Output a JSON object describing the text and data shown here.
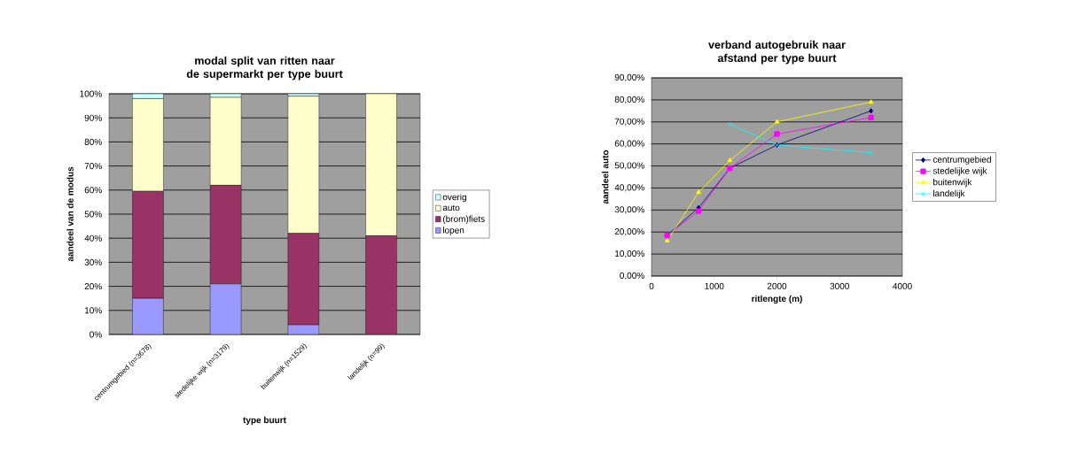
{
  "chart_data": [
    {
      "type": "bar",
      "stacked": true,
      "title": "modal split van ritten naar de supermarkt per type buurt",
      "xlabel": "type buurt",
      "ylabel": "aandeel van de modus",
      "categories": [
        "centrumgebied (n=3678)",
        "stedelijke wijk (n=3179)",
        "buitenwijk (n=1529)",
        "landelijk (n=99)"
      ],
      "series": [
        {
          "name": "lopen",
          "color": "#9999ff",
          "values": [
            15,
            21,
            4,
            0
          ]
        },
        {
          "name": "(brom)fiets",
          "color": "#993366",
          "values": [
            44.5,
            41,
            38,
            41
          ]
        },
        {
          "name": "auto",
          "color": "#ffffcc",
          "values": [
            38.5,
            36.5,
            57,
            59
          ]
        },
        {
          "name": "overig",
          "color": "#ccffff",
          "values": [
            2,
            1.5,
            1,
            0
          ]
        }
      ],
      "ylim": [
        0,
        100
      ],
      "yticks": [
        {
          "value": 0,
          "label": "0%"
        },
        {
          "value": 10,
          "label": "10%"
        },
        {
          "value": 20,
          "label": "20%"
        },
        {
          "value": 30,
          "label": "30%"
        },
        {
          "value": 40,
          "label": "40%"
        },
        {
          "value": 50,
          "label": "50%"
        },
        {
          "value": 60,
          "label": "60%"
        },
        {
          "value": 70,
          "label": "70%"
        },
        {
          "value": 80,
          "label": "80%"
        },
        {
          "value": 90,
          "label": "90%"
        },
        {
          "value": 100,
          "label": "100%"
        }
      ],
      "grid": "y",
      "legend": "right"
    },
    {
      "type": "line",
      "title": "verband autogebruik naar afstand per type buurt",
      "xlabel": "ritlengte (m)",
      "ylabel": "aandeel auto",
      "series": [
        {
          "name": "centrumgebied",
          "color": "#000080",
          "marker": "diamond",
          "x": [
            250,
            750,
            1250,
            2000,
            3500
          ],
          "values": [
            18.5,
            31,
            49,
            59.5,
            75
          ]
        },
        {
          "name": "stedelijke wijk",
          "color": "#ff00ff",
          "marker": "square",
          "x": [
            250,
            750,
            1250,
            2000,
            3500
          ],
          "values": [
            18.5,
            29.5,
            49,
            64.5,
            72
          ]
        },
        {
          "name": "buitenwijk",
          "color": "#ffff00",
          "marker": "triangle",
          "x": [
            250,
            750,
            1250,
            2000,
            3500
          ],
          "values": [
            16,
            38,
            52.5,
            70,
            79
          ]
        },
        {
          "name": "landelijk",
          "color": "#00ffff",
          "marker": "cross",
          "x": [
            1250,
            2000,
            3500
          ],
          "values": [
            69,
            59.5,
            56
          ]
        }
      ],
      "xlim": [
        0,
        4000
      ],
      "xticks": [
        0,
        1000,
        2000,
        3000,
        4000
      ],
      "ylim": [
        0,
        90
      ],
      "yticks": [
        {
          "value": 0,
          "label": "0,00%"
        },
        {
          "value": 10,
          "label": "10,00%"
        },
        {
          "value": 20,
          "label": "20,00%"
        },
        {
          "value": 30,
          "label": "30,00%"
        },
        {
          "value": 40,
          "label": "40,00%"
        },
        {
          "value": 50,
          "label": "50,00%"
        },
        {
          "value": 60,
          "label": "60,00%"
        },
        {
          "value": 70,
          "label": "70,00%"
        },
        {
          "value": 80,
          "label": "80,00%"
        },
        {
          "value": 90,
          "label": "90,00%"
        }
      ],
      "grid": "y",
      "legend": "right"
    }
  ]
}
